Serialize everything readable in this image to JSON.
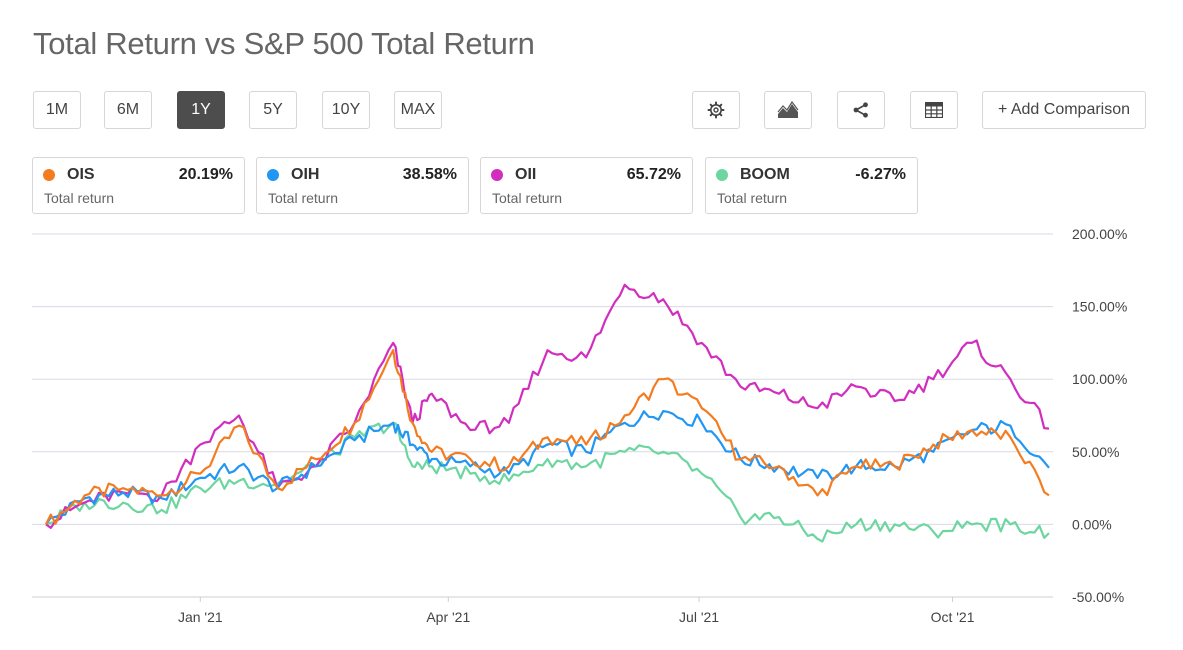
{
  "header": {
    "title": "Total Return vs S&P 500 Total Return"
  },
  "periods": [
    {
      "label": "1M",
      "active": false
    },
    {
      "label": "6M",
      "active": false
    },
    {
      "label": "1Y",
      "active": true
    },
    {
      "label": "5Y",
      "active": false
    },
    {
      "label": "10Y",
      "active": false
    },
    {
      "label": "MAX",
      "active": false
    }
  ],
  "toolbar": {
    "add_comparison_label": "+ Add Comparison",
    "icons": [
      "gear-icon",
      "chart-type-icon",
      "share-icon",
      "table-icon"
    ]
  },
  "legend_cards": [
    {
      "ticker": "OIS",
      "value": "20.19%",
      "sub": "Total return",
      "color": "#f47c20"
    },
    {
      "ticker": "OIH",
      "value": "38.58%",
      "sub": "Total return",
      "color": "#2196f3"
    },
    {
      "ticker": "OII",
      "value": "65.72%",
      "sub": "Total return",
      "color": "#d12ebf"
    },
    {
      "ticker": "BOOM",
      "value": "-6.27%",
      "sub": "Total return",
      "color": "#6dd6a0"
    }
  ],
  "chart_data": {
    "type": "line",
    "title": "Total Return vs S&P 500 Total Return",
    "xlabel": "",
    "ylabel": "",
    "ylim": [
      -50,
      200
    ],
    "y_ticks": [
      "200.00%",
      "150.00%",
      "100.00%",
      "50.00%",
      "0.00%",
      "-50.00%"
    ],
    "x_ticks": [
      "Jan '21",
      "Apr '21",
      "Jul '21",
      "Oct '21"
    ],
    "grid": true,
    "x": [
      "2020-11-06",
      "2020-11-20",
      "2020-12-04",
      "2020-12-18",
      "2021-01-01",
      "2021-01-15",
      "2021-01-29",
      "2021-02-12",
      "2021-02-26",
      "2021-03-12",
      "2021-03-19",
      "2021-03-26",
      "2021-04-09",
      "2021-04-23",
      "2021-05-07",
      "2021-05-21",
      "2021-06-04",
      "2021-06-18",
      "2021-07-02",
      "2021-07-16",
      "2021-07-30",
      "2021-08-13",
      "2021-08-27",
      "2021-09-10",
      "2021-09-24",
      "2021-10-08",
      "2021-10-22",
      "2021-11-05"
    ],
    "series": [
      {
        "name": "OIS",
        "color": "#f47c20",
        "values": [
          0,
          20,
          25,
          20,
          35,
          68,
          25,
          45,
          70,
          120,
          70,
          50,
          45,
          40,
          60,
          55,
          75,
          100,
          80,
          45,
          40,
          20,
          40,
          40,
          55,
          65,
          60,
          20
        ]
      },
      {
        "name": "OIH",
        "color": "#2196f3",
        "values": [
          0,
          18,
          22,
          18,
          32,
          40,
          25,
          40,
          58,
          70,
          55,
          45,
          40,
          35,
          55,
          50,
          70,
          78,
          70,
          45,
          40,
          32,
          40,
          40,
          50,
          65,
          68,
          39
        ]
      },
      {
        "name": "OII",
        "color": "#d12ebf",
        "values": [
          0,
          15,
          22,
          20,
          55,
          75,
          25,
          40,
          70,
          125,
          70,
          90,
          65,
          70,
          120,
          115,
          165,
          155,
          125,
          95,
          90,
          80,
          95,
          85,
          100,
          125,
          100,
          66
        ]
      },
      {
        "name": "BOOM",
        "color": "#6dd6a0",
        "values": [
          0,
          15,
          15,
          10,
          25,
          30,
          28,
          40,
          60,
          70,
          40,
          40,
          35,
          30,
          45,
          40,
          50,
          50,
          35,
          5,
          5,
          -10,
          0,
          0,
          -5,
          0,
          0,
          -6
        ]
      }
    ]
  }
}
